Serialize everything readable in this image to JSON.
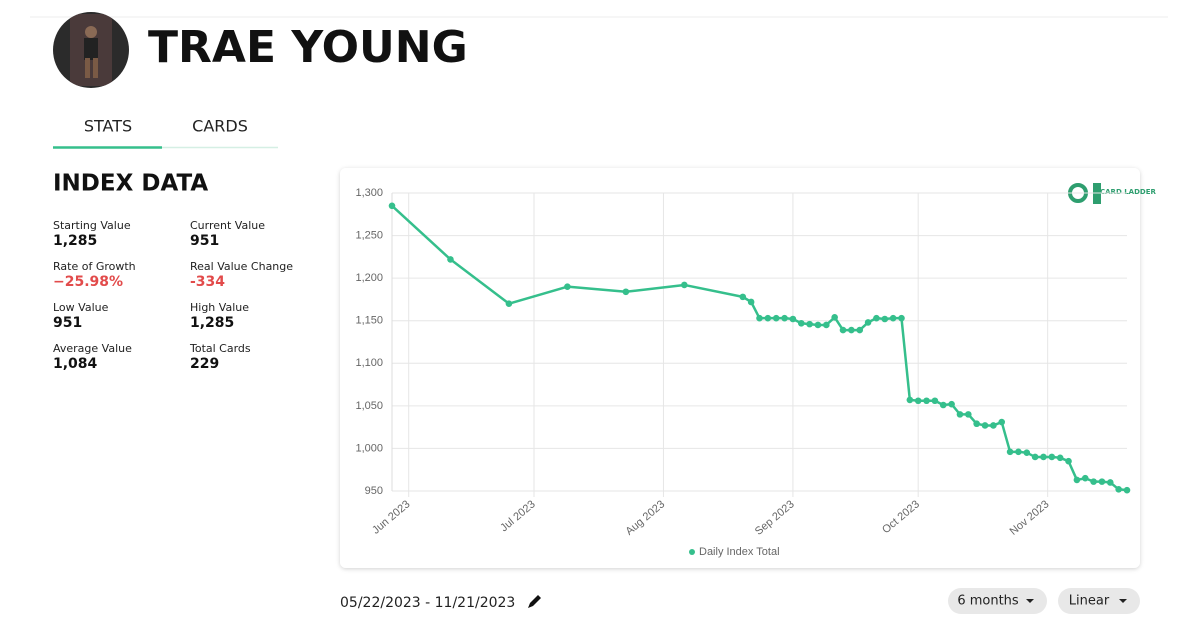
{
  "header": {
    "name": "TRAE YOUNG"
  },
  "tabs": [
    "STATS",
    "CARDS"
  ],
  "index_data": {
    "title": "INDEX DATA",
    "stats": [
      {
        "label": "Starting Value",
        "value": "1,285"
      },
      {
        "label": "Current Value",
        "value": "951"
      },
      {
        "label": "Rate of Growth",
        "value": "−25.98%"
      },
      {
        "label": "Real Value Change",
        "value": "-334"
      },
      {
        "label": "Low Value",
        "value": "951"
      },
      {
        "label": "High Value",
        "value": "1,285"
      },
      {
        "label": "Average Value",
        "value": "1,084"
      },
      {
        "label": "Total Cards",
        "value": "229"
      }
    ]
  },
  "logo": "CARD LADDER",
  "chart_data": {
    "type": "line",
    "x": [
      "2023-05-28",
      "2023-06-11",
      "2023-06-25",
      "2023-07-09",
      "2023-07-23",
      "2023-08-06",
      "2023-08-20",
      "2023-08-22",
      "2023-08-24",
      "2023-08-26",
      "2023-08-28",
      "2023-08-30",
      "2023-09-01",
      "2023-09-03",
      "2023-09-05",
      "2023-09-07",
      "2023-09-09",
      "2023-09-11",
      "2023-09-13",
      "2023-09-15",
      "2023-09-17",
      "2023-09-19",
      "2023-09-21",
      "2023-09-23",
      "2023-09-25",
      "2023-09-27",
      "2023-09-29",
      "2023-10-01",
      "2023-10-03",
      "2023-10-05",
      "2023-10-07",
      "2023-10-09",
      "2023-10-11",
      "2023-10-13",
      "2023-10-15",
      "2023-10-17",
      "2023-10-19",
      "2023-10-21",
      "2023-10-23",
      "2023-10-25",
      "2023-10-27",
      "2023-10-29",
      "2023-10-31",
      "2023-11-02",
      "2023-11-04",
      "2023-11-06",
      "2023-11-08",
      "2023-11-10",
      "2023-11-12",
      "2023-11-14",
      "2023-11-16",
      "2023-11-18",
      "2023-11-20"
    ],
    "series": [
      {
        "name": "Daily Index Total",
        "color": "#35bf8c",
        "values": [
          1285,
          1222,
          1170,
          1190,
          1184,
          1192,
          1178,
          1172,
          1153,
          1153,
          1153,
          1153,
          1152,
          1147,
          1146,
          1145,
          1145,
          1154,
          1139,
          1139,
          1139,
          1148,
          1153,
          1152,
          1153,
          1153,
          1057,
          1056,
          1056,
          1056,
          1051,
          1052,
          1040,
          1040,
          1029,
          1027,
          1027,
          1031,
          996,
          996,
          995,
          990,
          990,
          990,
          989,
          985,
          963,
          965,
          961,
          961,
          960,
          952,
          951
        ]
      }
    ],
    "xlim": [
      "2023-05-28",
      "2023-11-20"
    ],
    "xticks": [
      {
        "value": "2023-06-01",
        "label": "Jun 2023"
      },
      {
        "value": "2023-07-01",
        "label": "Jul 2023"
      },
      {
        "value": "2023-08-01",
        "label": "Aug 2023"
      },
      {
        "value": "2023-09-01",
        "label": "Sep 2023"
      },
      {
        "value": "2023-10-01",
        "label": "Oct 2023"
      },
      {
        "value": "2023-11-01",
        "label": "Nov 2023"
      }
    ],
    "ylim": [
      950,
      1300
    ],
    "yticks": [
      950,
      {
        "value": 1000,
        "label": "1,000"
      },
      {
        "value": 1050,
        "label": "1,050"
      },
      {
        "value": 1100,
        "label": "1,100"
      },
      {
        "value": 1150,
        "label": "1,150"
      },
      {
        "value": 1200,
        "label": "1,200"
      },
      {
        "value": 1250,
        "label": "1,250"
      },
      {
        "value": 1300,
        "label": "1,300"
      }
    ],
    "grid": true
  },
  "date_range": "05/22/2023 - 11/21/2023",
  "controls": [
    "6 months",
    "Linear"
  ]
}
